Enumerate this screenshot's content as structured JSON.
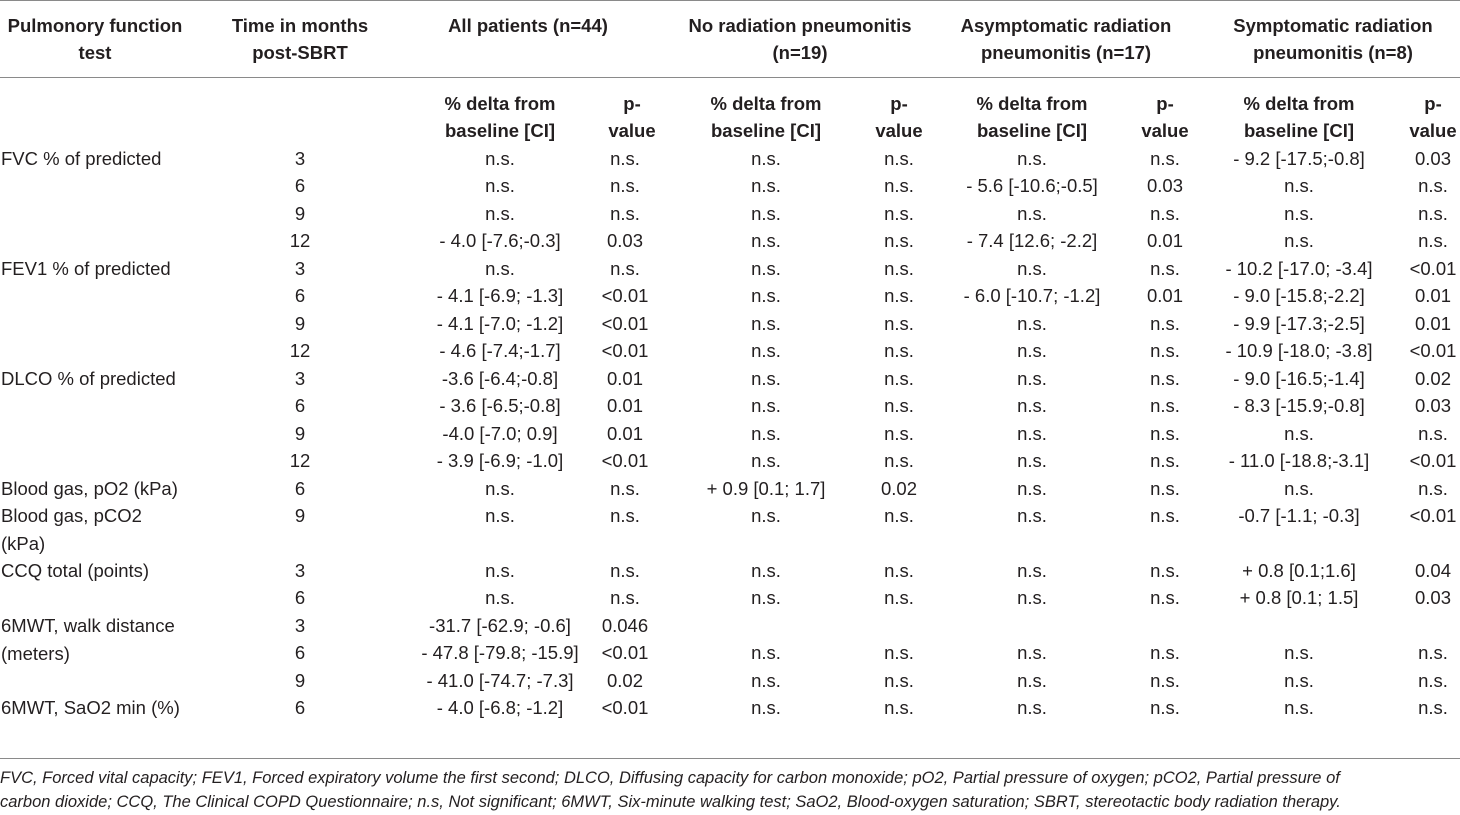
{
  "table": {
    "headers": {
      "col1": [
        "Pulmonory function",
        "test"
      ],
      "col2": [
        "Time in months",
        "post-SBRT"
      ],
      "groups": [
        [
          "All patients (n=44)"
        ],
        [
          "No radiation pneumonitis",
          "(n=19)"
        ],
        [
          "Asymptomatic radiation",
          "pneumonitis (n=17)"
        ],
        [
          "Symptomatic radiation",
          "pneumonitis (n=8)"
        ]
      ],
      "sub_delta": [
        "% delta from",
        "baseline [CI]"
      ],
      "sub_p": [
        "p-",
        "value"
      ]
    },
    "rows": [
      {
        "test": [
          "FVC % of predicted"
        ],
        "time": "3",
        "vals": [
          "n.s.",
          "n.s.",
          "n.s.",
          "n.s.",
          "n.s.",
          "n.s.",
          "- 9.2 [-17.5;-0.8]",
          "0.03"
        ]
      },
      {
        "test": [],
        "time": "6",
        "vals": [
          "n.s.",
          "n.s.",
          "n.s.",
          "n.s.",
          "- 5.6 [-10.6;-0.5]",
          "0.03",
          "n.s.",
          "n.s."
        ]
      },
      {
        "test": [],
        "time": "9",
        "vals": [
          "n.s.",
          "n.s.",
          "n.s.",
          "n.s.",
          "n.s.",
          "n.s.",
          "n.s.",
          "n.s."
        ]
      },
      {
        "test": [],
        "time": "12",
        "vals": [
          "- 4.0 [-7.6;-0.3]",
          "0.03",
          "n.s.",
          "n.s.",
          "- 7.4 [12.6; -2.2]",
          "0.01",
          "n.s.",
          "n.s."
        ]
      },
      {
        "test": [
          "FEV1 % of predicted"
        ],
        "time": "3",
        "vals": [
          "n.s.",
          "n.s.",
          "n.s.",
          "n.s.",
          "n.s.",
          "n.s.",
          "- 10.2 [-17.0; -3.4]",
          "<0.01"
        ]
      },
      {
        "test": [],
        "time": "6",
        "vals": [
          "- 4.1 [-6.9; -1.3]",
          "<0.01",
          "n.s.",
          "n.s.",
          "- 6.0 [-10.7; -1.2]",
          "0.01",
          "- 9.0 [-15.8;-2.2]",
          "0.01"
        ]
      },
      {
        "test": [],
        "time": "9",
        "vals": [
          "- 4.1 [-7.0; -1.2]",
          "<0.01",
          "n.s.",
          "n.s.",
          "n.s.",
          "n.s.",
          "- 9.9 [-17.3;-2.5]",
          "0.01"
        ]
      },
      {
        "test": [],
        "time": "12",
        "vals": [
          "- 4.6 [-7.4;-1.7]",
          "<0.01",
          "n.s.",
          "n.s.",
          "n.s.",
          "n.s.",
          "- 10.9 [-18.0; -3.8]",
          "<0.01"
        ]
      },
      {
        "test": [
          "DLCO % of predicted"
        ],
        "time": "3",
        "vals": [
          "-3.6 [-6.4;-0.8]",
          "0.01",
          "n.s.",
          "n.s.",
          "n.s.",
          "n.s.",
          "- 9.0 [-16.5;-1.4]",
          "0.02"
        ]
      },
      {
        "test": [],
        "time": "6",
        "vals": [
          "- 3.6 [-6.5;-0.8]",
          "0.01",
          "n.s.",
          "n.s.",
          "n.s.",
          "n.s.",
          "- 8.3 [-15.9;-0.8]",
          "0.03"
        ]
      },
      {
        "test": [],
        "time": "9",
        "vals": [
          "-4.0 [-7.0; 0.9]",
          "0.01",
          "n.s.",
          "n.s.",
          "n.s.",
          "n.s.",
          "n.s.",
          "n.s."
        ]
      },
      {
        "test": [],
        "time": "12",
        "vals": [
          "- 3.9 [-6.9; -1.0]",
          "<0.01",
          "n.s.",
          "n.s.",
          "n.s.",
          "n.s.",
          "- 11.0 [-18.8;-3.1]",
          "<0.01"
        ]
      },
      {
        "test": [
          "Blood gas, pO2 (kPa)"
        ],
        "time": "6",
        "vals": [
          "n.s.",
          "n.s.",
          "+ 0.9 [0.1; 1.7]",
          "0.02",
          "n.s.",
          "n.s.",
          "n.s.",
          "n.s."
        ]
      },
      {
        "test": [
          "Blood gas, pCO2",
          "(kPa)"
        ],
        "time": "9",
        "vals": [
          "n.s.",
          "n.s.",
          "n.s.",
          "n.s.",
          "n.s.",
          "n.s.",
          "-0.7 [-1.1; -0.3]",
          "<0.01"
        ]
      },
      {
        "test": [
          "CCQ total (points)"
        ],
        "time": "3",
        "vals": [
          "n.s.",
          "n.s.",
          "n.s.",
          "n.s.",
          "n.s.",
          "n.s.",
          "+ 0.8 [0.1;1.6]",
          "0.04"
        ]
      },
      {
        "test": [],
        "time": "6",
        "vals": [
          "n.s.",
          "n.s.",
          "n.s.",
          "n.s.",
          "n.s.",
          "n.s.",
          "+ 0.8 [0.1; 1.5]",
          "0.03"
        ]
      },
      {
        "test": [
          "6MWT, walk distance",
          "(meters)"
        ],
        "time": "3",
        "vals": [
          "-31.7 [-62.9; -0.6]",
          "0.046",
          "",
          "",
          "",
          "",
          "",
          ""
        ]
      },
      {
        "test": [],
        "time": "6",
        "vals": [
          "- 47.8 [-79.8; -15.9]",
          "<0.01",
          "n.s.",
          "n.s.",
          "n.s.",
          "n.s.",
          "n.s.",
          "n.s."
        ]
      },
      {
        "test": [],
        "time": "9",
        "vals": [
          "- 41.0 [-74.7; -7.3]",
          "0.02",
          "n.s.",
          "n.s.",
          "n.s.",
          "n.s.",
          "n.s.",
          "n.s."
        ]
      },
      {
        "test": [
          "6MWT, SaO2 min (%)"
        ],
        "time": "6",
        "vals": [
          "- 4.0 [-6.8; -1.2]",
          "<0.01",
          "n.s.",
          "n.s.",
          "n.s.",
          "n.s.",
          "n.s.",
          "n.s."
        ]
      }
    ]
  },
  "footnote": [
    "FVC, Forced vital capacity; FEV1, Forced expiratory volume the first second; DLCO, Diffusing capacity for carbon monoxide; pO2, Partial pressure of oxygen; pCO2, Partial pressure of",
    "carbon dioxide; CCQ, The Clinical COPD Questionnaire; n.s, Not significant; 6MWT, Six-minute walking test; SaO2, Blood-oxygen saturation; SBRT, stereotactic body radiation therapy."
  ]
}
